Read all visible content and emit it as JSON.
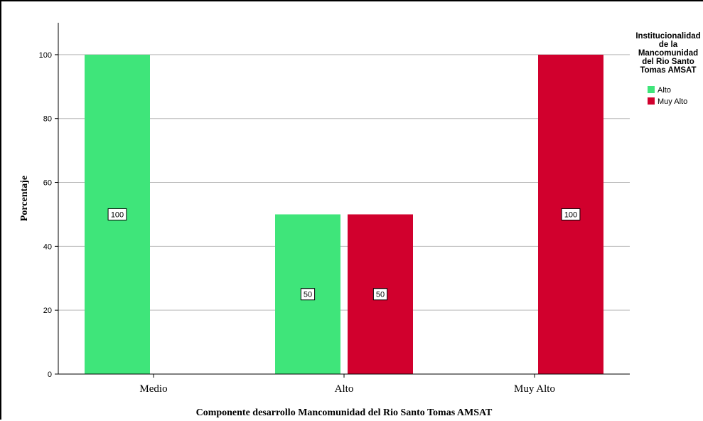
{
  "chart_data": {
    "type": "bar",
    "categories": [
      "Medio",
      "Alto",
      "Muy Alto"
    ],
    "series": [
      {
        "name": "Alto",
        "color": "#3fe57a",
        "values": [
          100,
          50,
          null
        ]
      },
      {
        "name": "Muy Alto",
        "color": "#d1002d",
        "values": [
          null,
          50,
          100
        ]
      }
    ],
    "data_labels": [
      {
        "category": "Medio",
        "series": "Alto",
        "text": "100"
      },
      {
        "category": "Alto",
        "series": "Alto",
        "text": "50"
      },
      {
        "category": "Alto",
        "series": "Muy Alto",
        "text": "50"
      },
      {
        "category": "Muy Alto",
        "series": "Muy Alto",
        "text": "100"
      }
    ],
    "xlabel": "Componente desarrollo Mancomunidad del Rio Santo Tomas AMSAT",
    "ylabel": "Porcentaje",
    "ylim": [
      0,
      110
    ],
    "yticks": [
      0,
      20,
      40,
      60,
      80,
      100
    ],
    "grid": true,
    "legend": {
      "title_lines": [
        "Institucionalidad",
        "de la",
        "Mancomunidad",
        "del Rio Santo",
        "Tomas AMSAT"
      ],
      "position": "right"
    }
  }
}
